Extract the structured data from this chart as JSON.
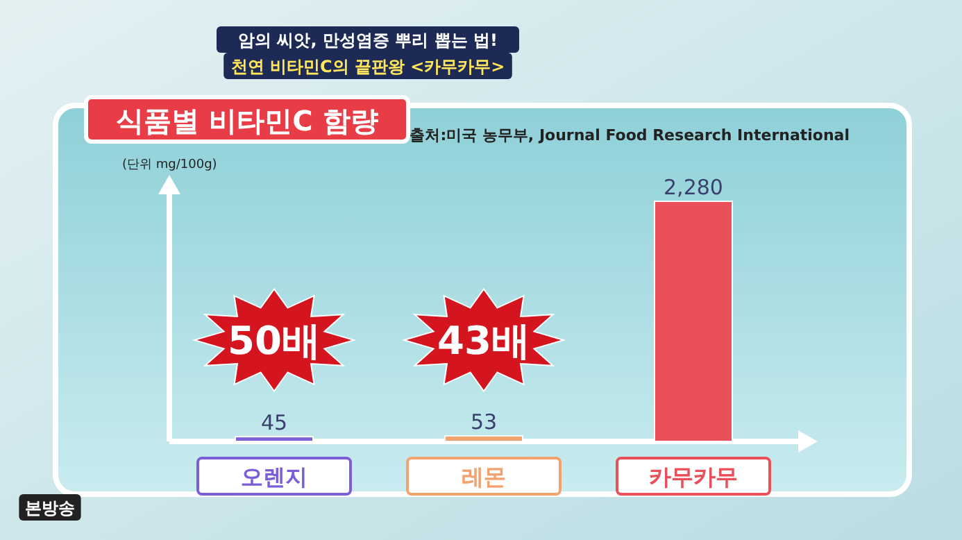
{
  "chart_data": {
    "type": "bar",
    "title": "식품별 비타민C 함량",
    "ylabel": "(단위 mg/100g)",
    "categories": [
      "오렌지",
      "레몬",
      "카무카무"
    ],
    "values": [
      45,
      53,
      2280
    ],
    "colors": [
      "#7b5fd8",
      "#f2a26e",
      "#e9505a"
    ],
    "value_labels": [
      "45",
      "53",
      "2,280"
    ],
    "annotations": [
      "출처:미국 농무부, Journal Food Research International",
      "암의 씨앗, 만성염증 뿌리 뽑는 법!",
      "천연 비타민C의 끝판왕 <카무카무>",
      "본방송",
      "50배",
      "43배"
    ]
  }
}
